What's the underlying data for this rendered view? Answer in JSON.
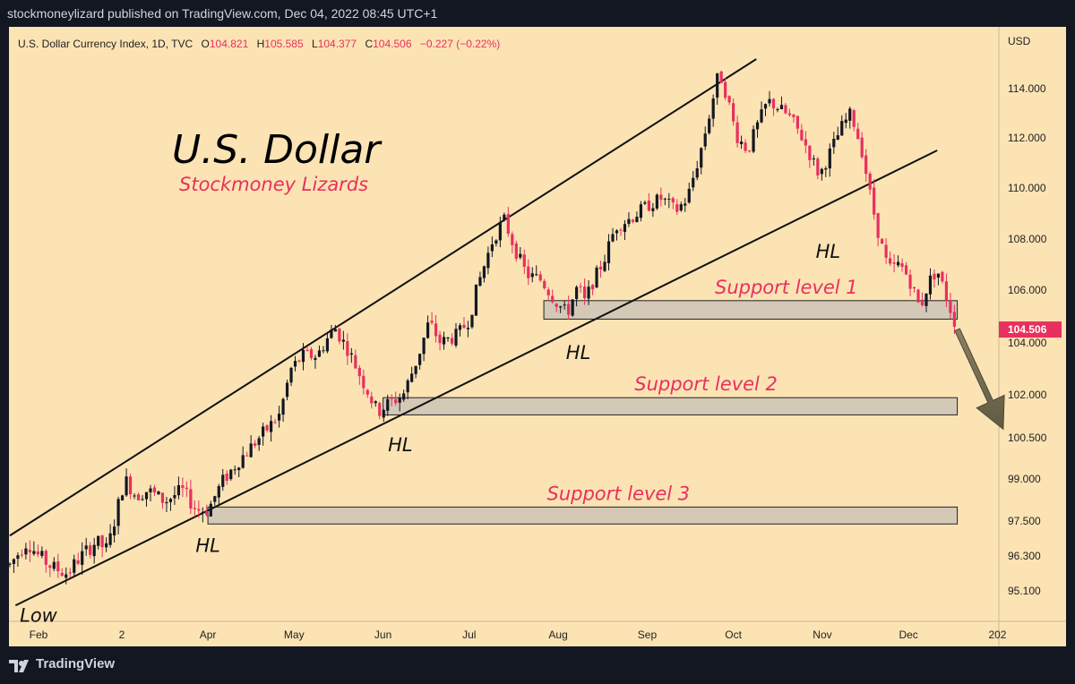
{
  "header": {
    "published_text": "stockmoneylizard published on TradingView.com, Dec 04, 2022 08:45 UTC+1"
  },
  "footer": {
    "brand": "TradingView"
  },
  "colors": {
    "background": "#fce3b4",
    "frame": "#131722",
    "up_candle": "#131722",
    "down_candle": "#e8305e",
    "accent_pink": "#e8305e",
    "zone_fill": "#d4c9b6"
  },
  "legend": {
    "symbol": "U.S. Dollar Currency Index, 1D, TVC",
    "open_label": "O",
    "open": "104.821",
    "high_label": "H",
    "high": "105.585",
    "low_label": "L",
    "low": "104.377",
    "close_label": "C",
    "close": "104.506",
    "change": "−0.227 (−0.22%)"
  },
  "chart_data": {
    "type": "candlestick",
    "title": "U.S. Dollar",
    "subtitle": "Stockmoney Lizards",
    "ylabel": "USD",
    "current_price": "104.506",
    "y_ticks": [
      "114.000",
      "112.000",
      "110.000",
      "108.000",
      "106.000",
      "104.000",
      "102.000",
      "100.500",
      "99.000",
      "97.500",
      "96.300",
      "95.100"
    ],
    "y_tick_values": [
      114.0,
      112.0,
      110.0,
      108.0,
      106.0,
      104.0,
      102.0,
      100.5,
      99.0,
      97.5,
      96.3,
      95.1
    ],
    "x_ticks": [
      {
        "label": "Feb",
        "day": 0
      },
      {
        "label": "2",
        "day": 29
      },
      {
        "label": "Apr",
        "day": 59
      },
      {
        "label": "May",
        "day": 89
      },
      {
        "label": "Jun",
        "day": 120
      },
      {
        "label": "Jul",
        "day": 150
      },
      {
        "label": "Aug",
        "day": 181
      },
      {
        "label": "Sep",
        "day": 212
      },
      {
        "label": "Oct",
        "day": 242
      },
      {
        "label": "Nov",
        "day": 273
      },
      {
        "label": "Dec",
        "day": 303
      },
      {
        "label": "202",
        "day": 334
      }
    ],
    "price_path": [
      [
        -10,
        96.0
      ],
      [
        -4,
        96.8
      ],
      [
        0,
        96.3
      ],
      [
        5,
        95.9
      ],
      [
        10,
        95.7
      ],
      [
        14,
        96.2
      ],
      [
        20,
        96.8
      ],
      [
        24,
        96.5
      ],
      [
        30,
        99.0
      ],
      [
        34,
        98.4
      ],
      [
        38,
        98.6
      ],
      [
        44,
        98.2
      ],
      [
        50,
        98.6
      ],
      [
        55,
        97.9
      ],
      [
        59,
        97.9
      ],
      [
        64,
        98.9
      ],
      [
        70,
        99.7
      ],
      [
        76,
        100.4
      ],
      [
        84,
        101.3
      ],
      [
        88,
        103.0
      ],
      [
        92,
        103.5
      ],
      [
        97,
        103.5
      ],
      [
        103,
        104.6
      ],
      [
        108,
        103.7
      ],
      [
        113,
        102.5
      ],
      [
        118,
        101.4
      ],
      [
        122,
        101.7
      ],
      [
        127,
        102.0
      ],
      [
        132,
        103.4
      ],
      [
        136,
        104.8
      ],
      [
        140,
        104.0
      ],
      [
        146,
        104.3
      ],
      [
        150,
        104.9
      ],
      [
        153,
        106.2
      ],
      [
        158,
        107.9
      ],
      [
        162,
        108.8
      ],
      [
        166,
        107.6
      ],
      [
        170,
        106.6
      ],
      [
        175,
        106.4
      ],
      [
        180,
        105.6
      ],
      [
        184,
        105.1
      ],
      [
        188,
        106.2
      ],
      [
        190,
        105.5
      ],
      [
        193,
        106.3
      ],
      [
        197,
        107.2
      ],
      [
        201,
        108.5
      ],
      [
        206,
        108.8
      ],
      [
        212,
        109.3
      ],
      [
        217,
        109.6
      ],
      [
        222,
        109.1
      ],
      [
        226,
        109.6
      ],
      [
        230,
        111.2
      ],
      [
        233,
        112.6
      ],
      [
        237,
        114.7
      ],
      [
        240,
        113.6
      ],
      [
        243,
        112.1
      ],
      [
        247,
        111.5
      ],
      [
        250,
        112.4
      ],
      [
        254,
        113.5
      ],
      [
        258,
        113.2
      ],
      [
        262,
        112.8
      ],
      [
        266,
        112.0
      ],
      [
        270,
        111.0
      ],
      [
        272,
        110.5
      ],
      [
        276,
        111.5
      ],
      [
        280,
        112.5
      ],
      [
        283,
        113.0
      ],
      [
        287,
        111.4
      ],
      [
        290,
        109.5
      ],
      [
        293,
        108.0
      ],
      [
        296,
        106.8
      ],
      [
        300,
        107.0
      ],
      [
        303,
        106.5
      ],
      [
        307,
        105.3
      ],
      [
        310,
        106.3
      ],
      [
        313,
        106.8
      ],
      [
        316,
        105.8
      ],
      [
        320,
        104.5
      ]
    ],
    "support_zones": [
      {
        "label": "Support level 1",
        "low": 104.9,
        "high": 105.6,
        "start_day": 176,
        "end_day": 320
      },
      {
        "label": "Support level 2",
        "low": 101.3,
        "high": 101.9,
        "start_day": 120,
        "end_day": 320
      },
      {
        "label": "Support level 3",
        "low": 97.4,
        "high": 98.0,
        "start_day": 59,
        "end_day": 320
      }
    ],
    "trendlines": [
      {
        "name": "upper-channel",
        "from_day": -10,
        "from_price": 97.0,
        "to_day": 250,
        "to_price": 115.2
      },
      {
        "name": "lower-trendline",
        "from_day": -8,
        "from_price": 94.6,
        "to_day": 313,
        "to_price": 111.5
      }
    ],
    "annotations": [
      {
        "text": "Low",
        "day": 0,
        "price": 94.6
      },
      {
        "text": "HL",
        "day": 59,
        "price": 97.0
      },
      {
        "text": "HL",
        "day": 126,
        "price": 100.6
      },
      {
        "text": "HL",
        "day": 188,
        "price": 104.0
      },
      {
        "text": "HL",
        "day": 275,
        "price": 107.9
      }
    ],
    "forecast_arrow": {
      "from_day": 320,
      "from_price": 104.5,
      "to_day": 336,
      "to_price": 100.8
    }
  }
}
